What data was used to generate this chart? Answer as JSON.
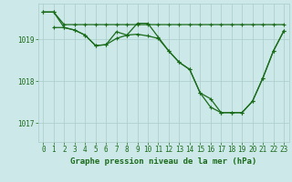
{
  "background_color": "#cce8e8",
  "grid_color": "#aacccc",
  "line_color": "#1a6b1a",
  "title": "Graphe pression niveau de la mer (hPa)",
  "title_fontsize": 6.5,
  "tick_fontsize": 5.5,
  "ylim": [
    1016.55,
    1019.85
  ],
  "xlim": [
    -0.5,
    23.5
  ],
  "yticks": [
    1017,
    1018,
    1019
  ],
  "xticks": [
    0,
    1,
    2,
    3,
    4,
    5,
    6,
    7,
    8,
    9,
    10,
    11,
    12,
    13,
    14,
    15,
    16,
    17,
    18,
    19,
    20,
    21,
    22,
    23
  ],
  "series1_x": [
    0,
    1,
    2,
    3,
    4,
    5,
    6,
    7,
    8,
    9,
    10,
    11,
    12,
    13,
    14,
    15,
    16,
    17,
    18,
    19,
    20,
    21,
    22,
    23
  ],
  "series1_y": [
    1019.65,
    1019.65,
    1019.35,
    1019.35,
    1019.35,
    1019.35,
    1019.35,
    1019.35,
    1019.35,
    1019.35,
    1019.35,
    1019.35,
    1019.35,
    1019.35,
    1019.35,
    1019.35,
    1019.35,
    1019.35,
    1019.35,
    1019.35,
    1019.35,
    1019.35,
    1019.35,
    1019.35
  ],
  "series2_x": [
    0,
    1,
    2,
    3,
    4,
    5,
    6,
    7,
    8,
    9,
    10,
    11,
    12,
    13,
    14,
    15,
    16,
    17,
    18,
    19,
    20,
    21,
    22,
    23
  ],
  "series2_y": [
    1019.65,
    1019.65,
    1019.28,
    1019.22,
    1019.1,
    1018.85,
    1018.87,
    1019.02,
    1019.1,
    1019.12,
    1019.08,
    1019.02,
    1018.72,
    1018.45,
    1018.28,
    1017.72,
    1017.38,
    1017.25,
    1017.25,
    1017.25,
    1017.52,
    1018.08,
    1018.72,
    1019.2
  ],
  "series3_x": [
    1,
    2,
    3,
    4,
    5,
    6,
    7,
    8,
    9,
    10,
    11,
    12,
    13,
    14,
    15,
    16,
    17,
    18,
    19,
    20,
    21,
    22,
    23
  ],
  "series3_y": [
    1019.28,
    1019.28,
    1019.22,
    1019.1,
    1018.85,
    1018.87,
    1019.18,
    1019.1,
    1019.38,
    1019.38,
    1019.05,
    1018.72,
    1018.45,
    1018.28,
    1017.72,
    1017.58,
    1017.25,
    1017.25,
    1017.25,
    1017.52,
    1018.08,
    1018.72,
    1019.2
  ]
}
